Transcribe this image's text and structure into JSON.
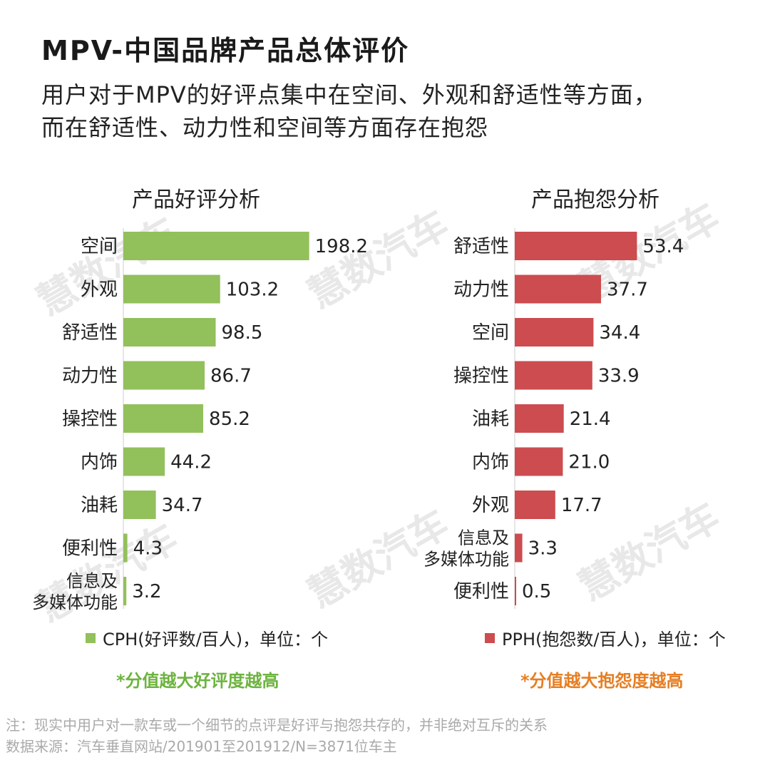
{
  "title": "MPV-中国品牌产品总体评价",
  "subtitle_line1": "用户对于MPV的好评点集中在空间、外观和舒适性等方面，",
  "subtitle_line2": "而在舒适性、动力性和空间等方面存在抱怨",
  "watermark": "慧数汽车",
  "colors": {
    "positive": "#92c05b",
    "negative": "#cc4c4f",
    "positive_note": "#6db33f",
    "negative_note": "#e67e22"
  },
  "chart_data": [
    {
      "type": "bar",
      "orientation": "horizontal",
      "title": "产品好评分析",
      "categories": [
        "空间",
        "外观",
        "舒适性",
        "动力性",
        "操控性",
        "内饰",
        "油耗",
        "便利性",
        "信息及多媒体功能"
      ],
      "values": [
        198.2,
        103.2,
        98.5,
        86.7,
        85.2,
        44.2,
        34.7,
        4.3,
        3.2
      ],
      "legend": "CPH(好评数/百人)，单位：个",
      "note": "*分值越大好评度越高",
      "color": "#92c05b"
    },
    {
      "type": "bar",
      "orientation": "horizontal",
      "title": "产品抱怨分析",
      "categories": [
        "舒适性",
        "动力性",
        "空间",
        "操控性",
        "油耗",
        "内饰",
        "外观",
        "信息及多媒体功能",
        "便利性"
      ],
      "values": [
        53.4,
        37.7,
        34.4,
        33.9,
        21.4,
        21.0,
        17.7,
        3.3,
        0.5
      ],
      "legend": "PPH(抱怨数/百人)，单位：个",
      "note": "*分值越大抱怨度越高",
      "color": "#cc4c4f"
    }
  ],
  "footnote_line1": "注：现实中用户对一款车或一个细节的点评是好评与抱怨共存的，并非绝对互斥的关系",
  "footnote_line2": "数据来源：汽车垂直网站/201901至201912/N=3871位车主"
}
